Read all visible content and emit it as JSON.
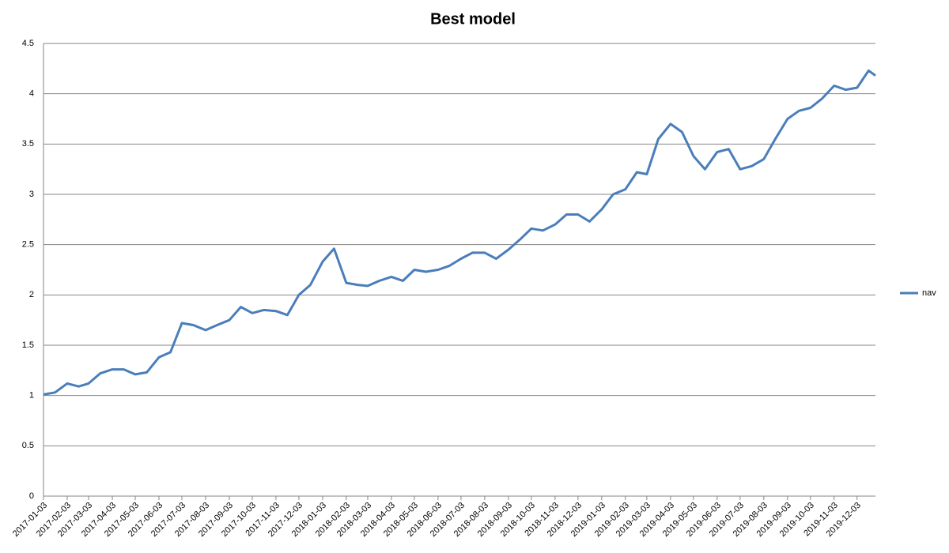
{
  "chart_data": {
    "type": "line",
    "title": "Best model",
    "x": [
      "2017-01-03",
      "2017-01-18",
      "2017-02-03",
      "2017-02-18",
      "2017-03-03",
      "2017-03-18",
      "2017-04-03",
      "2017-04-18",
      "2017-05-03",
      "2017-05-18",
      "2017-06-03",
      "2017-06-18",
      "2017-07-03",
      "2017-07-18",
      "2017-08-03",
      "2017-08-18",
      "2017-09-03",
      "2017-09-18",
      "2017-10-03",
      "2017-10-18",
      "2017-11-03",
      "2017-11-18",
      "2017-12-03",
      "2017-12-18",
      "2018-01-03",
      "2018-01-18",
      "2018-02-03",
      "2018-02-18",
      "2018-03-03",
      "2018-03-18",
      "2018-04-03",
      "2018-04-18",
      "2018-05-03",
      "2018-05-18",
      "2018-06-03",
      "2018-06-18",
      "2018-07-03",
      "2018-07-18",
      "2018-08-03",
      "2018-08-18",
      "2018-09-03",
      "2018-09-18",
      "2018-10-03",
      "2018-10-18",
      "2018-11-03",
      "2018-11-18",
      "2018-12-03",
      "2018-12-18",
      "2019-01-03",
      "2019-01-18",
      "2019-02-03",
      "2019-02-18",
      "2019-03-03",
      "2019-03-18",
      "2019-04-03",
      "2019-04-18",
      "2019-05-03",
      "2019-05-18",
      "2019-06-03",
      "2019-06-18",
      "2019-07-03",
      "2019-07-18",
      "2019-08-03",
      "2019-08-18",
      "2019-09-03",
      "2019-09-18",
      "2019-10-03",
      "2019-10-18",
      "2019-11-03",
      "2019-11-18",
      "2019-12-03",
      "2019-12-18",
      "2019-12-27"
    ],
    "series": [
      {
        "name": "nav",
        "color": "#4a7ebb",
        "values": [
          1.01,
          1.03,
          1.12,
          1.09,
          1.12,
          1.22,
          1.26,
          1.26,
          1.21,
          1.23,
          1.38,
          1.43,
          1.72,
          1.7,
          1.65,
          1.7,
          1.75,
          1.88,
          1.82,
          1.85,
          1.84,
          1.8,
          2.0,
          2.1,
          2.33,
          2.46,
          2.12,
          2.1,
          2.09,
          2.14,
          2.18,
          2.14,
          2.25,
          2.23,
          2.25,
          2.29,
          2.36,
          2.42,
          2.42,
          2.36,
          2.45,
          2.55,
          2.66,
          2.64,
          2.7,
          2.8,
          2.8,
          2.73,
          2.85,
          3.0,
          3.05,
          3.22,
          3.2,
          3.55,
          3.7,
          3.62,
          3.38,
          3.25,
          3.42,
          3.45,
          3.25,
          3.28,
          3.35,
          3.55,
          3.75,
          3.83,
          3.86,
          3.95,
          4.08,
          4.04,
          4.06,
          4.23,
          4.18
        ]
      }
    ],
    "xlim": [
      "2017-01-03",
      "2019-12-27"
    ],
    "xticks": [
      "2017-01-03",
      "2017-02-03",
      "2017-03-03",
      "2017-04-03",
      "2017-05-03",
      "2017-06-03",
      "2017-07-03",
      "2017-08-03",
      "2017-09-03",
      "2017-10-03",
      "2017-11-03",
      "2017-12-03",
      "2018-01-03",
      "2018-02-03",
      "2018-03-03",
      "2018-04-03",
      "2018-05-03",
      "2018-06-03",
      "2018-07-03",
      "2018-08-03",
      "2018-09-03",
      "2018-10-03",
      "2018-11-03",
      "2018-12-03",
      "2019-01-03",
      "2019-02-03",
      "2019-03-03",
      "2019-04-03",
      "2019-05-03",
      "2019-06-03",
      "2019-07-03",
      "2019-08-03",
      "2019-09-03",
      "2019-10-03",
      "2019-11-03",
      "2019-12-03"
    ],
    "ylim": [
      0,
      4.5
    ],
    "yticks": [
      0,
      0.5,
      1,
      1.5,
      2,
      2.5,
      3,
      3.5,
      4,
      4.5
    ],
    "grid": true,
    "legend": "right"
  }
}
